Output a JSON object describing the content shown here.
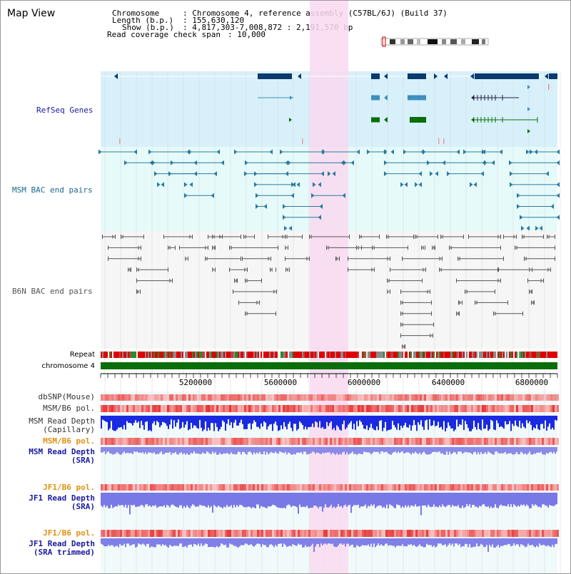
{
  "app": {
    "title": "Map View"
  },
  "info": {
    "chromosome_key": "Chromosome",
    "chromosome_value": ": Chromosome 4, reference assembly (C57BL/6J) (Build 37)",
    "length_key": "Length (b.p.)",
    "length_value": ": 155,630,120",
    "show_key": "Show (b.p.)",
    "show_value": ": 4,817,303-7,008,872 : 2,191,570 bp",
    "coverage_key": "Read coverage check span",
    "coverage_value": ": 10,000"
  },
  "tracks": {
    "refseq": "RefSeq Genes",
    "msm_bac": "MSM BAC end pairs",
    "b6n_bac": "B6N BAC end pairs",
    "repeat": "Repeat",
    "chromosome": "chromosome 4"
  },
  "axis": {
    "ticks": [
      "5200000",
      "5600000",
      "6000000",
      "6400000",
      "6800000"
    ]
  },
  "lower_tracks": {
    "dbsnp": "dbSNP(Mouse)",
    "msm_b6_pol": "MSM/B6 pol.",
    "msm_depth_cap": "MSM Read Depth",
    "msm_depth_cap_sub": "(Capillary)",
    "msm_b6_pol2": "MSM/B6 pol.",
    "msm_depth_sra": "MSM Read Depth",
    "msm_depth_sra_sub": "(SRA)",
    "jf1_b6_pol": "JF1/B6 pol.",
    "jf1_depth_sra": "JF1 Read Depth",
    "jf1_depth_sra_sub": "(SRA)",
    "jf1_b6_pol2": "JF1/B6 pol.",
    "jf1_depth_trim": "JF1 Read Depth",
    "jf1_depth_trim_sub": "(SRA trimmed)"
  },
  "colors": {
    "highlight": "#f9d9f0",
    "refseq_bg": "#d8f0fa",
    "msm_bg": "#e6fafa",
    "b6n_bg": "#f6f6f6",
    "gene_dark": "#0a3a6e",
    "gene_mid": "#3d8fbf",
    "gene_green": "#0a6e0a",
    "label_blue": "#1a1aa0",
    "label_orange": "#e09010",
    "chromosome_green": "#0a6e0a"
  }
}
